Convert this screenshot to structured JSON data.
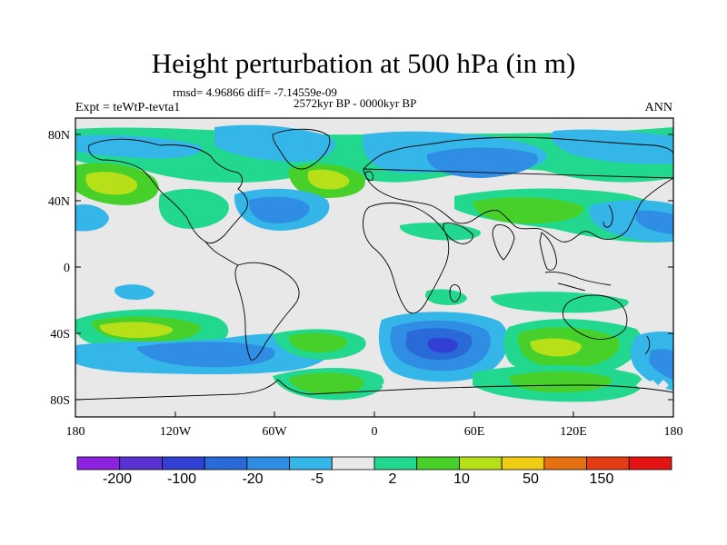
{
  "title": "Height perturbation at 500 hPa (in m)",
  "stats_line": "rmsd= 4.96866 diff= -7.14559e-09",
  "period": "2572kyr BP - 0000kyr BP",
  "experiment": "Expt = teWtP-tevta1",
  "season": "ANN",
  "lat_ticks": [
    "80N",
    "40N",
    "0",
    "40S",
    "80S"
  ],
  "lon_ticks": [
    "180",
    "120W",
    "60W",
    "0",
    "60E",
    "120E",
    "180"
  ],
  "colorbar": {
    "colors": [
      "#8a22e0",
      "#5a32d2",
      "#3140d2",
      "#2a6ad8",
      "#2f8ee4",
      "#34b6e8",
      "#e8e8e8",
      "#22d88e",
      "#48d02a",
      "#b8e018",
      "#f0cc14",
      "#e67012",
      "#e43c14",
      "#e41414"
    ],
    "labels": [
      "-200",
      "-100",
      "-20",
      "-5",
      "2",
      "10",
      "50",
      "150"
    ]
  },
  "colors": {
    "neutral": "#e8e8e8",
    "coast": "#000000"
  }
}
